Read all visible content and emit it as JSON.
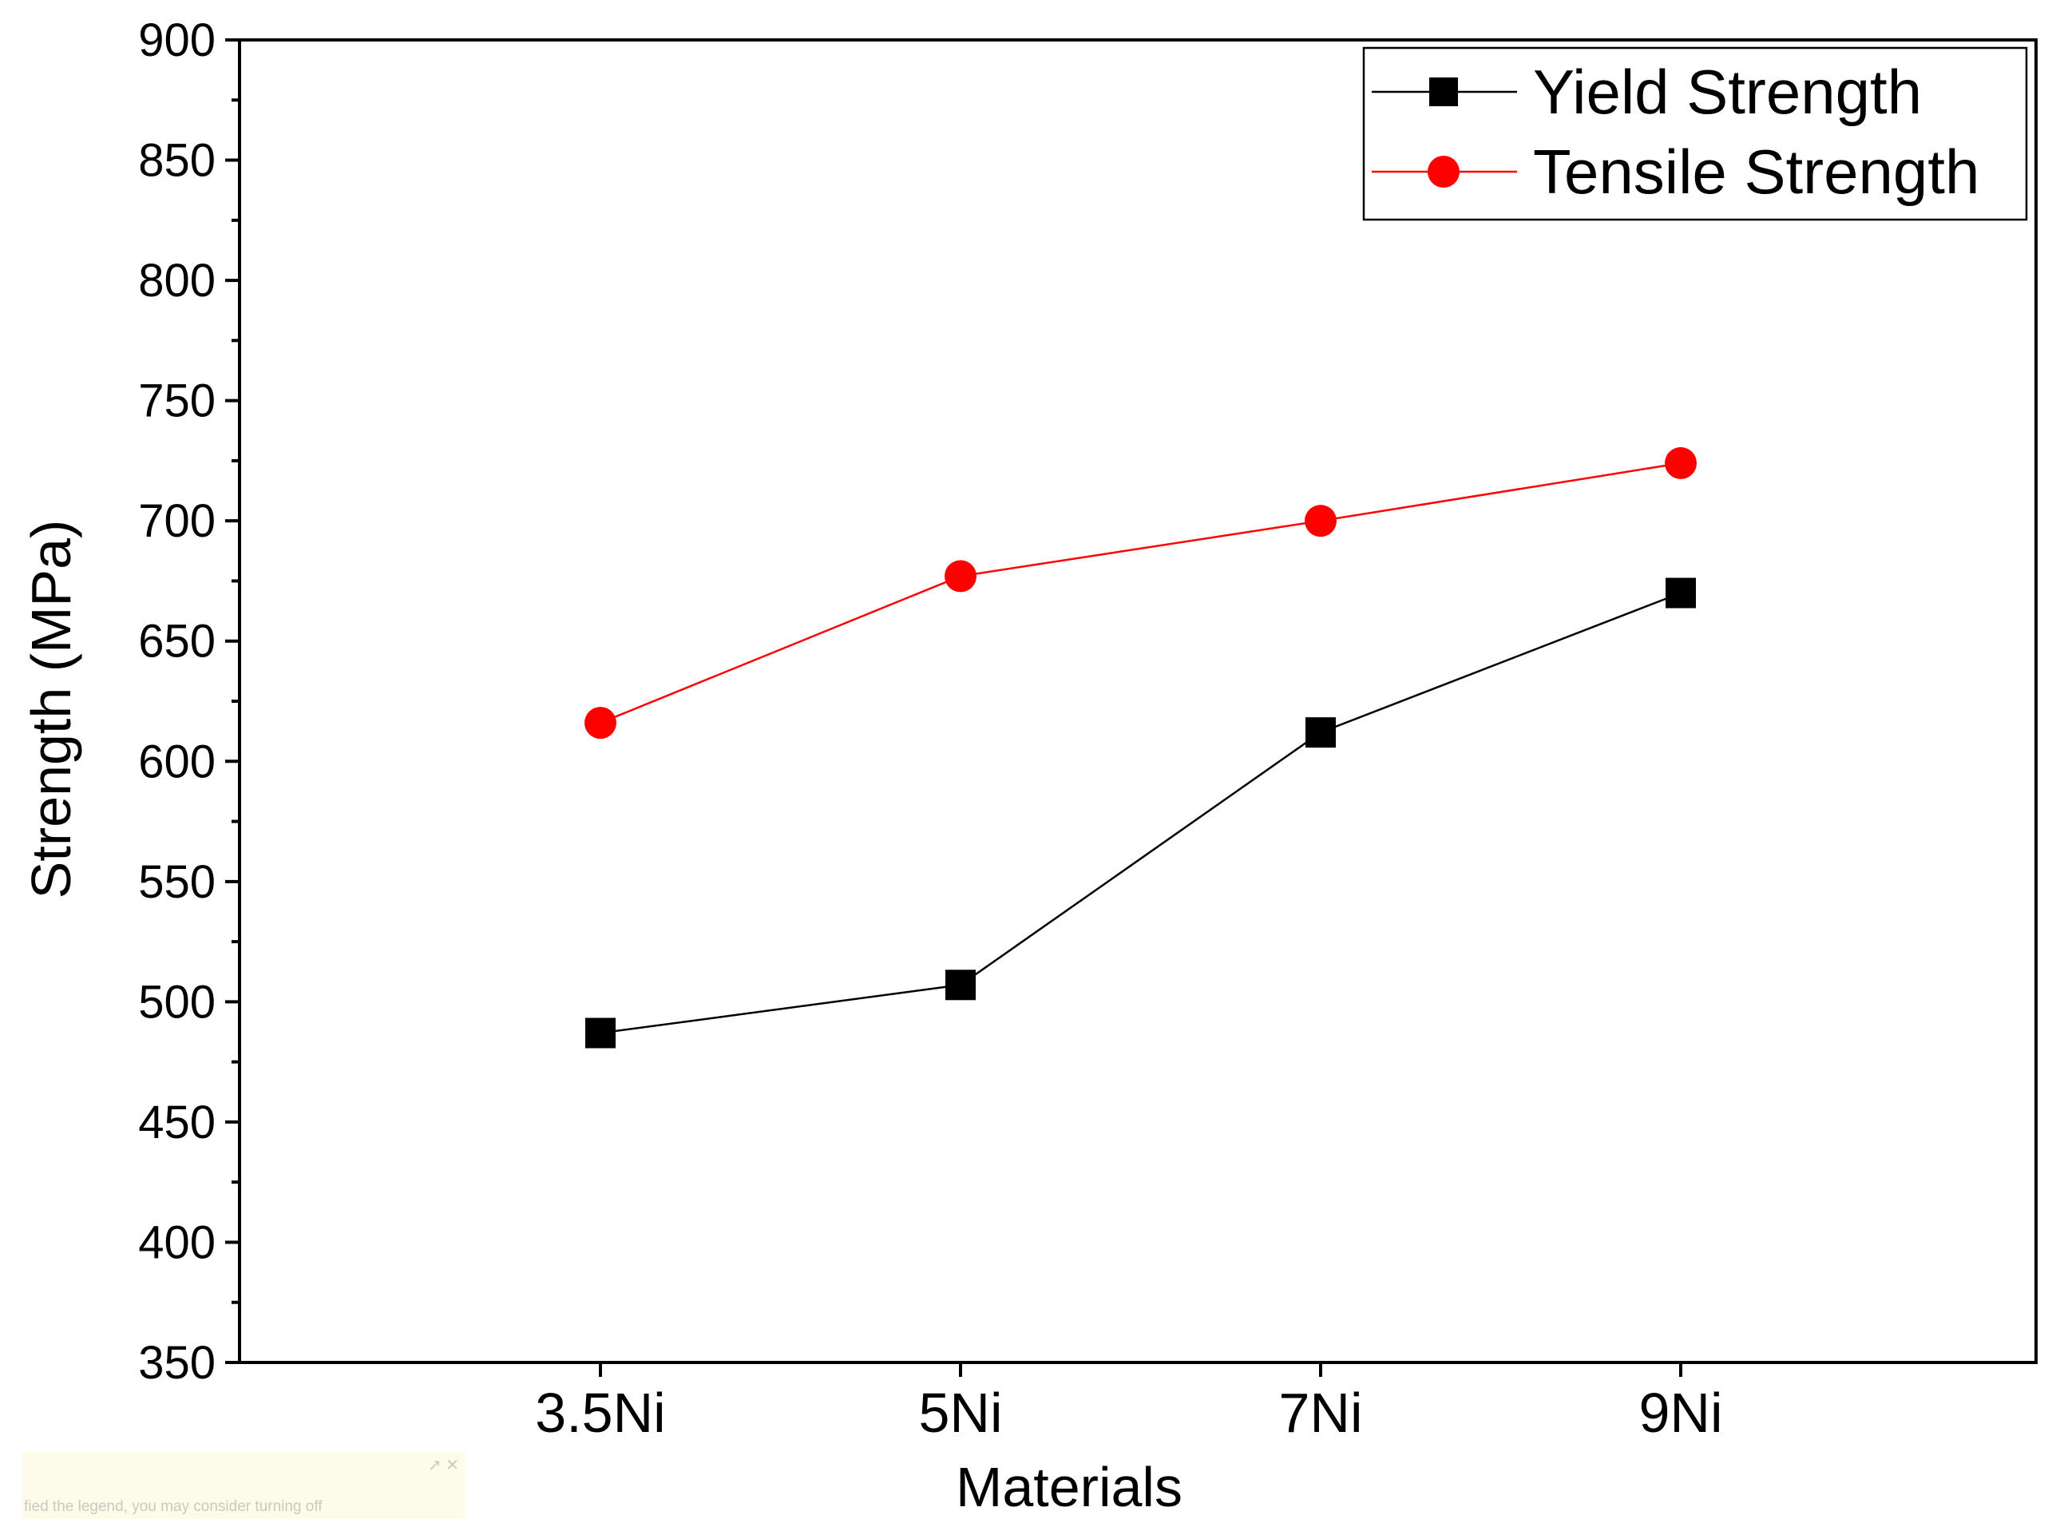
{
  "chart_data": {
    "type": "line",
    "title": "",
    "xlabel": "Materials",
    "ylabel": "Strength (MPa)",
    "categories": [
      "3.5Ni",
      "5Ni",
      "7Ni",
      "9Ni"
    ],
    "ylim": [
      350,
      900
    ],
    "yticks": [
      350,
      400,
      450,
      500,
      550,
      600,
      650,
      700,
      750,
      800,
      850,
      900
    ],
    "ytick_labels": [
      "350",
      "400",
      "450",
      "500",
      "550",
      "600",
      "650",
      "700",
      "750",
      "800",
      "850",
      "900"
    ],
    "grid": false,
    "legend_position": "top-right",
    "series": [
      {
        "name": "Yield Strength",
        "values": [
          487,
          507,
          612,
          670
        ],
        "color": "#000000",
        "marker": "square"
      },
      {
        "name": "Tensile Strength",
        "values": [
          616,
          677,
          700,
          724
        ],
        "color": "#ff0000",
        "marker": "circle"
      }
    ]
  },
  "overlay": {
    "hint_text": "fied the legend, you may consider turning off",
    "hint_icons": "↗ ✕"
  }
}
